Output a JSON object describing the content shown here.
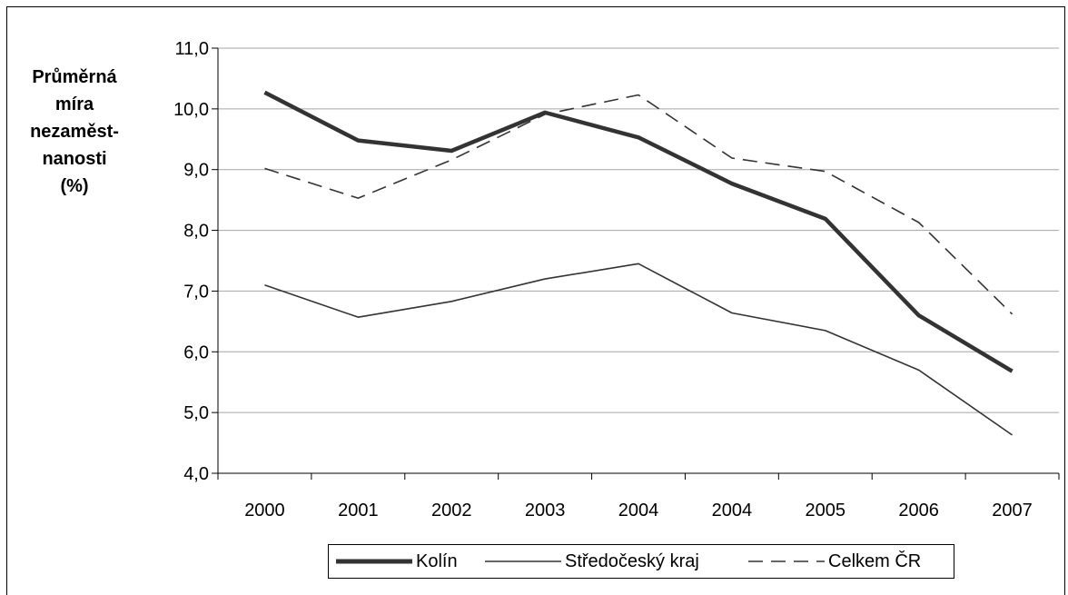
{
  "chart_data": {
    "type": "line",
    "ylabel_lines": [
      "Průměrná",
      "míra",
      "nezaměst-",
      "nanosti",
      "(%)"
    ],
    "categories": [
      "2000",
      "2001",
      "2002",
      "2003",
      "2004",
      "2004",
      "2005",
      "2006",
      "2007"
    ],
    "ylim": [
      4.0,
      11.0
    ],
    "yticks": [
      "4,0",
      "5,0",
      "6,0",
      "7,0",
      "8,0",
      "9,0",
      "10,0",
      "11,0"
    ],
    "grid": true,
    "legend_position": "bottom",
    "series": [
      {
        "name": "Kolín",
        "style": "thick",
        "color": "#333333",
        "values": [
          10.27,
          9.48,
          9.31,
          9.94,
          9.53,
          8.77,
          8.19,
          6.6,
          5.68
        ]
      },
      {
        "name": "Středočeský kraj",
        "style": "thin",
        "color": "#333333",
        "values": [
          7.1,
          6.57,
          6.83,
          7.2,
          7.45,
          6.64,
          6.35,
          5.7,
          4.63
        ]
      },
      {
        "name": "Celkem ČR",
        "style": "dashed",
        "color": "#333333",
        "values": [
          9.02,
          8.53,
          9.16,
          9.91,
          10.23,
          9.19,
          8.97,
          8.13,
          6.62
        ]
      }
    ]
  }
}
